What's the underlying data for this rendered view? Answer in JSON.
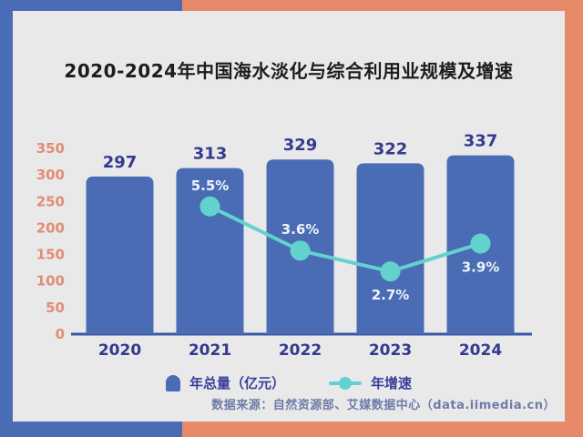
{
  "page": {
    "title": "2020-2024年中国海水淡化与综合利用业规模及增速",
    "source_note": "数据来源：自然资源部、艾媒数据中心（data.iimedia.cn）"
  },
  "legend": [
    {
      "label": "年总量（亿元）",
      "marker": "bar-icon",
      "color": "#4a6cb4"
    },
    {
      "label": "年增速",
      "marker": "line-dot-icon",
      "color": "#63d1cd"
    }
  ],
  "chart_data": {
    "type": "bar",
    "title": "2020-2024年中国海水淡化与综合利用业规模及增速",
    "categories": [
      "2020",
      "2021",
      "2022",
      "2023",
      "2024"
    ],
    "series": [
      {
        "name": "年总量（亿元）",
        "type": "bar",
        "values": [
          297,
          313,
          329,
          322,
          337
        ],
        "color": "#4a6cb4"
      },
      {
        "name": "年增速",
        "type": "line",
        "unit": "%",
        "values": [
          null,
          5.5,
          3.6,
          2.7,
          3.9
        ],
        "labels": [
          null,
          "5.5%",
          "3.6%",
          "2.7%",
          "3.9%"
        ],
        "label_positions": [
          null,
          "above",
          "above",
          "below",
          "below"
        ],
        "color": "#63d1cd"
      }
    ],
    "xlabel": "",
    "ylabel": "",
    "ylim": [
      0,
      350
    ],
    "yticks": [
      0,
      50,
      100,
      150,
      200,
      250,
      300,
      350
    ],
    "secondary_ylim": [
      0,
      8
    ],
    "secondary_axis_visible": false,
    "grid": false,
    "legend_position": "bottom"
  },
  "colors": {
    "frame_blue": "#4a6cb4",
    "frame_orange": "#e78a69",
    "card_bg": "#e9e9ea",
    "title_text": "#1d1d1f",
    "bar_fill": "#4a6cb4",
    "bar_value_text": "#343a8e",
    "category_text": "#343a8e",
    "ytick_text": "#e08d76",
    "axis_line": "#3a57a8",
    "line_series": "#63d1cd",
    "line_label_text": "#eef3fb",
    "legend_text": "#3b3e9a",
    "source_text": "#6e7ca6"
  }
}
